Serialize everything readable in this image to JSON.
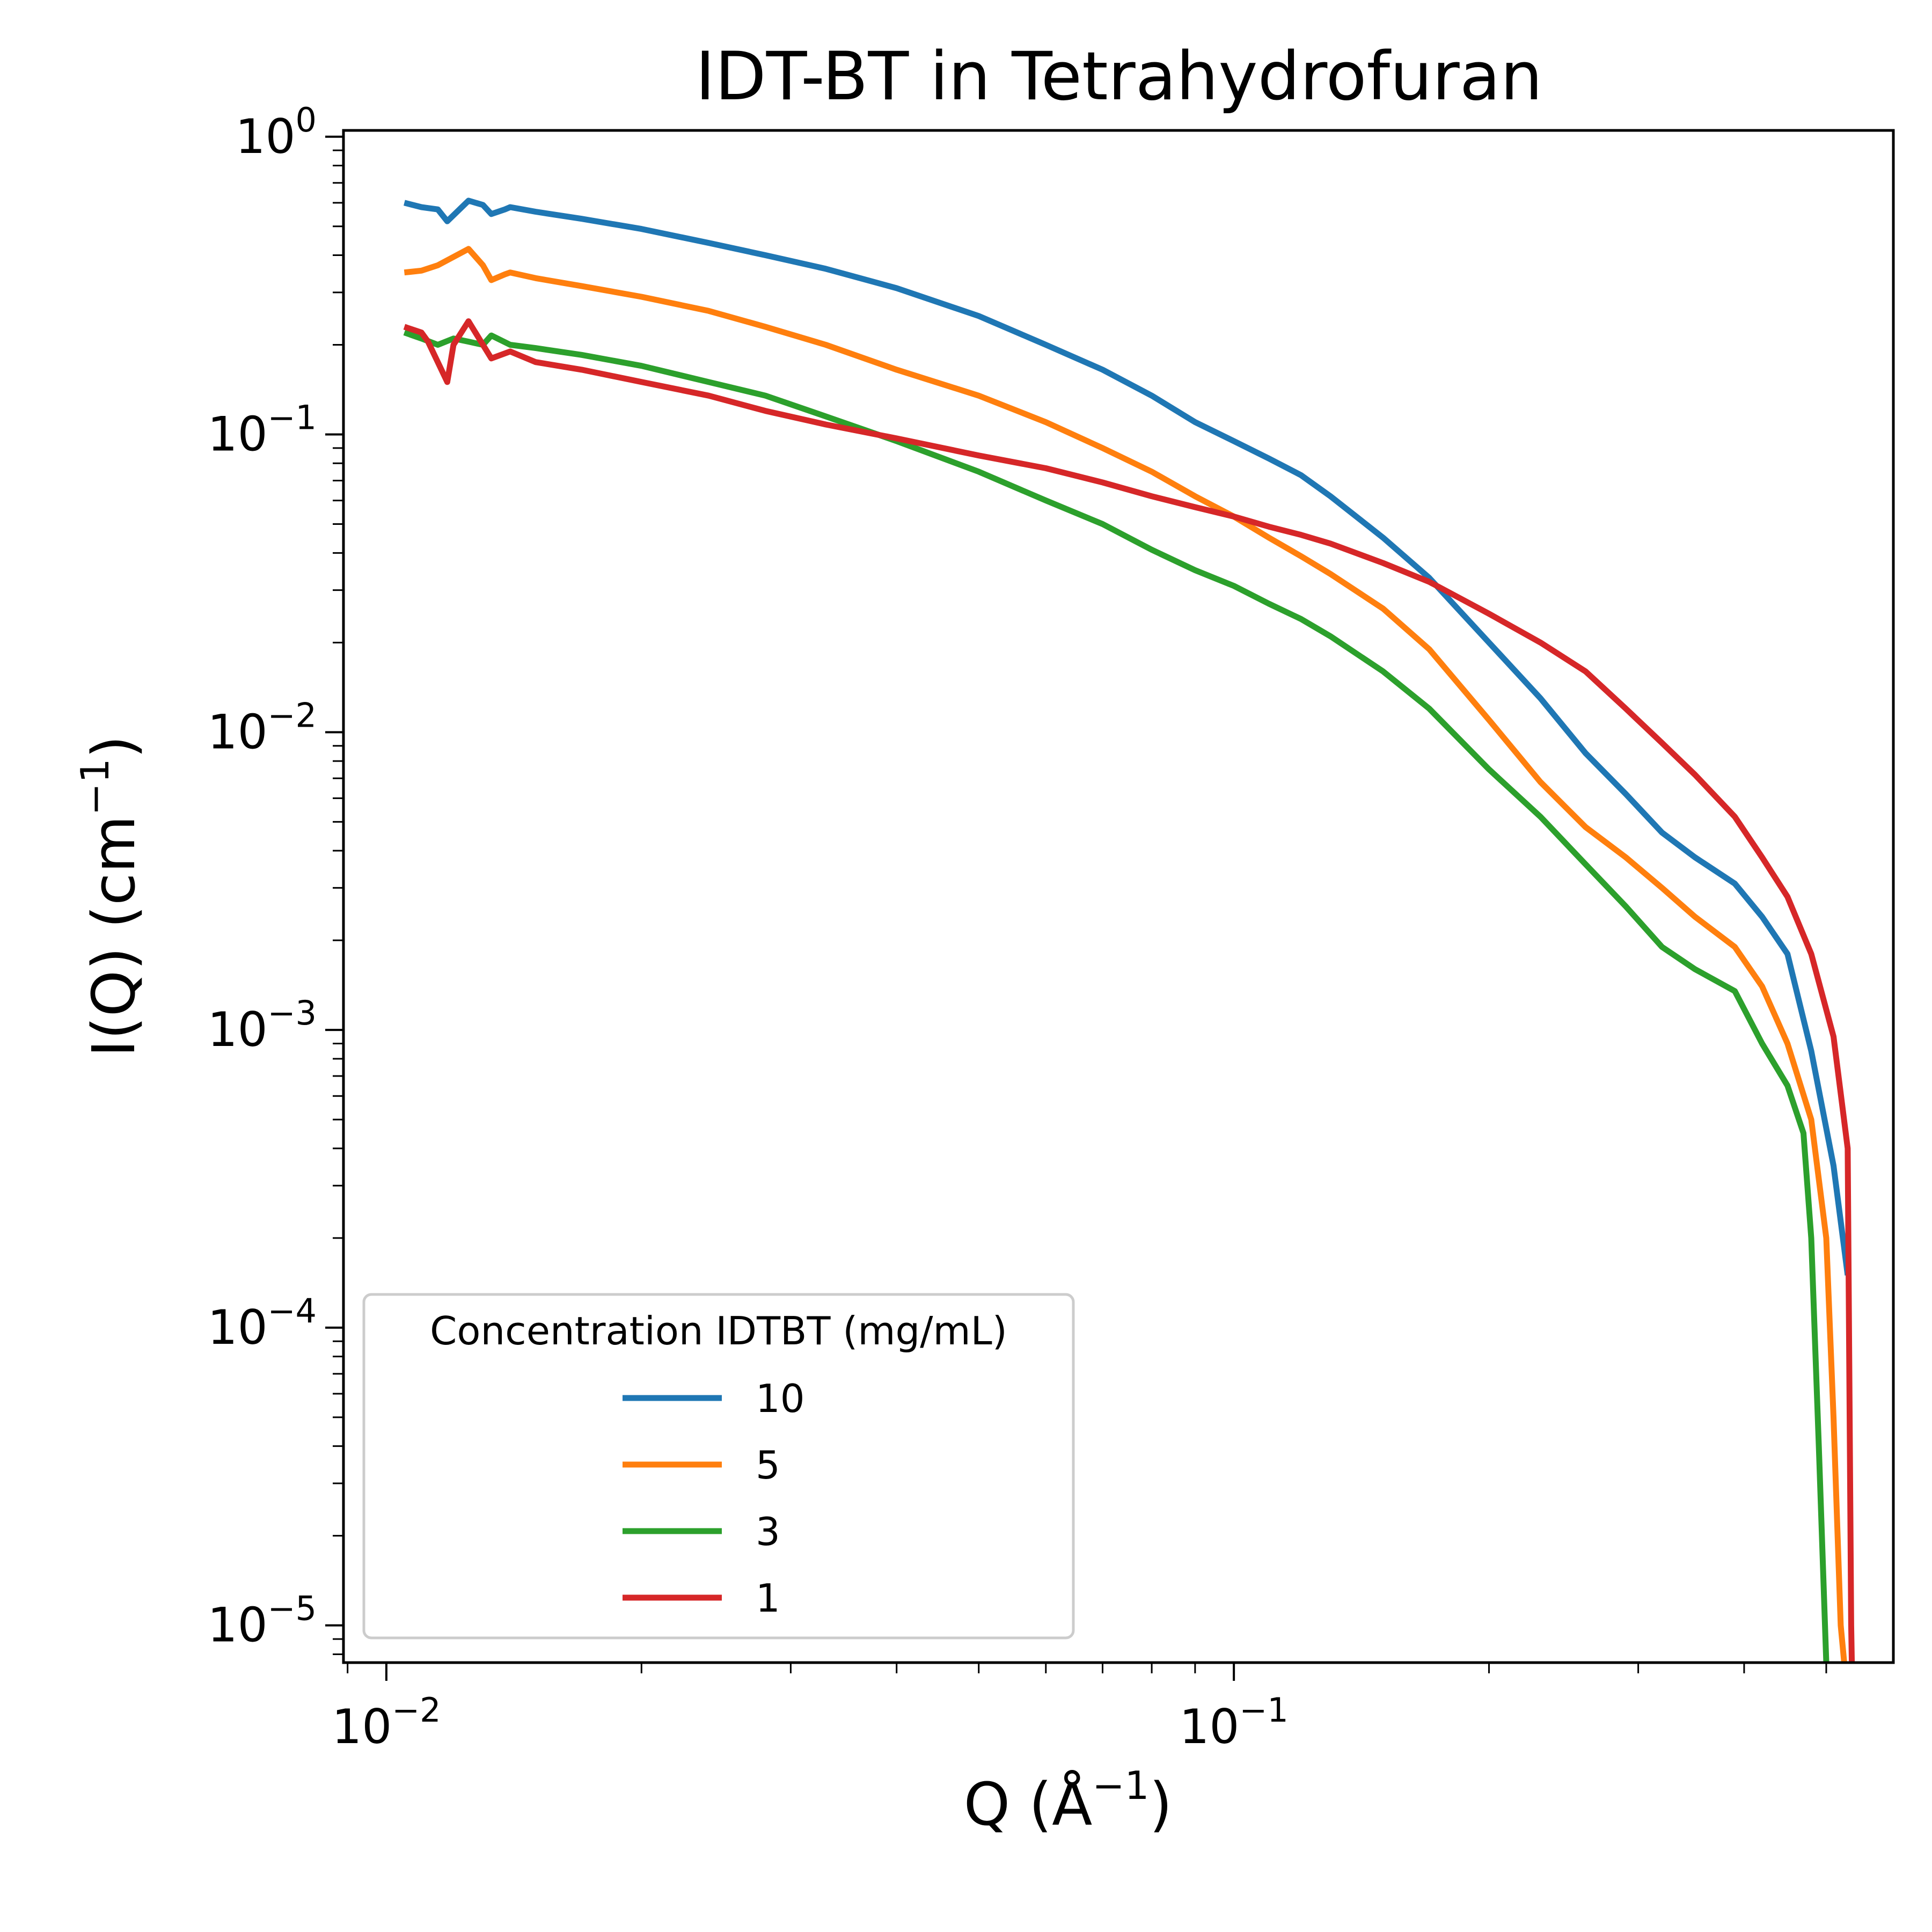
{
  "chart_data": {
    "type": "line",
    "title": "IDT-BT in Tetrahydrofuran",
    "xlabel": "Q (Å",
    "xlabel_sup": "−1",
    "xlabel_close": ")",
    "ylabel": "I(Q) (cm",
    "ylabel_sup": "−1",
    "ylabel_close": ")",
    "xscale": "log",
    "yscale": "log",
    "xlim": [
      0.0089,
      0.6
    ],
    "ylim": [
      7.5e-06,
      1.05
    ],
    "grid": false,
    "x_ticks": [
      {
        "base": "10",
        "exp": "−2",
        "value": 0.01
      },
      {
        "base": "10",
        "exp": "−1",
        "value": 0.1
      }
    ],
    "y_ticks": [
      {
        "base": "10",
        "exp": "0",
        "value": 1
      },
      {
        "base": "10",
        "exp": "−1",
        "value": 0.1
      },
      {
        "base": "10",
        "exp": "−2",
        "value": 0.01
      },
      {
        "base": "10",
        "exp": "−3",
        "value": 0.001
      },
      {
        "base": "10",
        "exp": "−4",
        "value": 0.0001
      },
      {
        "base": "10",
        "exp": "−5",
        "value": 1e-05
      }
    ],
    "legend": {
      "title": "Concentration IDTBT (mg/mL)",
      "placement": "lower-left"
    },
    "series": [
      {
        "name": "10",
        "color": "#1f77b4",
        "points": [
          [
            0.0105,
            0.6
          ],
          [
            0.011,
            0.58
          ],
          [
            0.0115,
            0.57
          ],
          [
            0.0118,
            0.52
          ],
          [
            0.0125,
            0.61
          ],
          [
            0.013,
            0.59
          ],
          [
            0.0133,
            0.55
          ],
          [
            0.0138,
            0.57
          ],
          [
            0.014,
            0.58
          ],
          [
            0.015,
            0.56
          ],
          [
            0.017,
            0.53
          ],
          [
            0.02,
            0.49
          ],
          [
            0.024,
            0.44
          ],
          [
            0.028,
            0.4
          ],
          [
            0.033,
            0.36
          ],
          [
            0.04,
            0.31
          ],
          [
            0.05,
            0.25
          ],
          [
            0.06,
            0.2
          ],
          [
            0.07,
            0.165
          ],
          [
            0.08,
            0.135
          ],
          [
            0.09,
            0.11
          ],
          [
            0.1,
            0.095
          ],
          [
            0.11,
            0.083
          ],
          [
            0.12,
            0.073
          ],
          [
            0.13,
            0.062
          ],
          [
            0.15,
            0.045
          ],
          [
            0.17,
            0.033
          ],
          [
            0.2,
            0.02
          ],
          [
            0.23,
            0.013
          ],
          [
            0.26,
            0.0085
          ],
          [
            0.29,
            0.0062
          ],
          [
            0.32,
            0.0046
          ],
          [
            0.35,
            0.0038
          ],
          [
            0.39,
            0.0031
          ],
          [
            0.42,
            0.0024
          ],
          [
            0.45,
            0.0018
          ],
          [
            0.48,
            0.00085
          ],
          [
            0.51,
            0.00035
          ],
          [
            0.53,
            0.00015
          ]
        ]
      },
      {
        "name": "5",
        "color": "#ff7f0e",
        "points": [
          [
            0.0105,
            0.35
          ],
          [
            0.011,
            0.355
          ],
          [
            0.0115,
            0.37
          ],
          [
            0.0125,
            0.42
          ],
          [
            0.013,
            0.37
          ],
          [
            0.0133,
            0.33
          ],
          [
            0.0138,
            0.345
          ],
          [
            0.014,
            0.35
          ],
          [
            0.015,
            0.335
          ],
          [
            0.017,
            0.315
          ],
          [
            0.02,
            0.29
          ],
          [
            0.024,
            0.26
          ],
          [
            0.028,
            0.23
          ],
          [
            0.033,
            0.2
          ],
          [
            0.04,
            0.165
          ],
          [
            0.05,
            0.135
          ],
          [
            0.06,
            0.11
          ],
          [
            0.07,
            0.09
          ],
          [
            0.08,
            0.075
          ],
          [
            0.09,
            0.062
          ],
          [
            0.1,
            0.053
          ],
          [
            0.11,
            0.045
          ],
          [
            0.12,
            0.039
          ],
          [
            0.13,
            0.034
          ],
          [
            0.15,
            0.026
          ],
          [
            0.17,
            0.019
          ],
          [
            0.2,
            0.011
          ],
          [
            0.23,
            0.0068
          ],
          [
            0.26,
            0.0048
          ],
          [
            0.29,
            0.0038
          ],
          [
            0.32,
            0.003
          ],
          [
            0.35,
            0.0024
          ],
          [
            0.39,
            0.0019
          ],
          [
            0.42,
            0.0014
          ],
          [
            0.45,
            0.0009
          ],
          [
            0.48,
            0.0005
          ],
          [
            0.5,
            0.0002
          ],
          [
            0.51,
            5e-05
          ],
          [
            0.52,
            1e-05
          ],
          [
            0.525,
            7.5e-06
          ]
        ]
      },
      {
        "name": "3",
        "color": "#2ca02c",
        "points": [
          [
            0.0105,
            0.22
          ],
          [
            0.011,
            0.21
          ],
          [
            0.0115,
            0.2
          ],
          [
            0.012,
            0.21
          ],
          [
            0.0125,
            0.205
          ],
          [
            0.013,
            0.2
          ],
          [
            0.0133,
            0.215
          ],
          [
            0.014,
            0.2
          ],
          [
            0.015,
            0.195
          ],
          [
            0.017,
            0.185
          ],
          [
            0.02,
            0.17
          ],
          [
            0.024,
            0.15
          ],
          [
            0.028,
            0.135
          ],
          [
            0.033,
            0.115
          ],
          [
            0.04,
            0.095
          ],
          [
            0.05,
            0.075
          ],
          [
            0.06,
            0.06
          ],
          [
            0.07,
            0.05
          ],
          [
            0.08,
            0.041
          ],
          [
            0.09,
            0.035
          ],
          [
            0.1,
            0.031
          ],
          [
            0.11,
            0.027
          ],
          [
            0.12,
            0.024
          ],
          [
            0.13,
            0.021
          ],
          [
            0.15,
            0.016
          ],
          [
            0.17,
            0.012
          ],
          [
            0.2,
            0.0075
          ],
          [
            0.23,
            0.0052
          ],
          [
            0.26,
            0.0036
          ],
          [
            0.29,
            0.0026
          ],
          [
            0.32,
            0.0019
          ],
          [
            0.35,
            0.0016
          ],
          [
            0.39,
            0.00135
          ],
          [
            0.42,
            0.0009
          ],
          [
            0.45,
            0.00065
          ],
          [
            0.47,
            0.00045
          ],
          [
            0.48,
            0.0002
          ],
          [
            0.49,
            4e-05
          ],
          [
            0.5,
            7.5e-06
          ]
        ]
      },
      {
        "name": "1",
        "color": "#d62728",
        "points": [
          [
            0.0105,
            0.23
          ],
          [
            0.011,
            0.22
          ],
          [
            0.0112,
            0.205
          ],
          [
            0.0118,
            0.15
          ],
          [
            0.012,
            0.2
          ],
          [
            0.0125,
            0.24
          ],
          [
            0.013,
            0.2
          ],
          [
            0.0133,
            0.18
          ],
          [
            0.014,
            0.19
          ],
          [
            0.015,
            0.175
          ],
          [
            0.017,
            0.165
          ],
          [
            0.02,
            0.15
          ],
          [
            0.024,
            0.135
          ],
          [
            0.028,
            0.12
          ],
          [
            0.033,
            0.108
          ],
          [
            0.04,
            0.097
          ],
          [
            0.05,
            0.085
          ],
          [
            0.06,
            0.077
          ],
          [
            0.07,
            0.069
          ],
          [
            0.08,
            0.062
          ],
          [
            0.09,
            0.057
          ],
          [
            0.1,
            0.053
          ],
          [
            0.11,
            0.049
          ],
          [
            0.12,
            0.046
          ],
          [
            0.13,
            0.043
          ],
          [
            0.15,
            0.037
          ],
          [
            0.17,
            0.032
          ],
          [
            0.2,
            0.025
          ],
          [
            0.23,
            0.02
          ],
          [
            0.26,
            0.016
          ],
          [
            0.29,
            0.012
          ],
          [
            0.32,
            0.0092
          ],
          [
            0.35,
            0.0072
          ],
          [
            0.39,
            0.0052
          ],
          [
            0.42,
            0.0038
          ],
          [
            0.45,
            0.0028
          ],
          [
            0.48,
            0.0018
          ],
          [
            0.51,
            0.00095
          ],
          [
            0.53,
            0.0004
          ],
          [
            0.535,
            1e-05
          ],
          [
            0.536,
            7.5e-06
          ]
        ]
      }
    ]
  }
}
